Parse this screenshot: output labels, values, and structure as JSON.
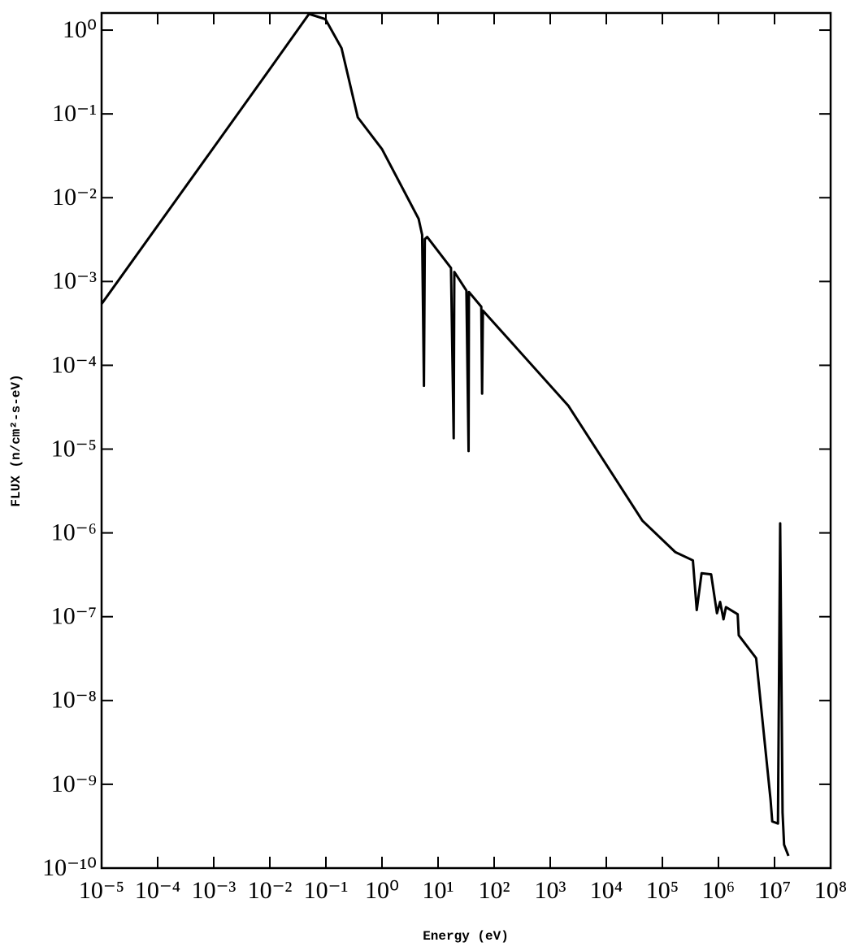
{
  "chart_data": {
    "type": "line",
    "x_label": "Energy (eV)",
    "y_label": "FLUX (n/cm²-s-eV)",
    "x_log": true,
    "y_log": true,
    "color": "#000000",
    "xlim": [
      1e-05,
      100000000
    ],
    "ylim": [
      1e-10,
      1.6
    ],
    "xticks": [
      {
        "value": 1e-05,
        "label": "10⁻⁵"
      },
      {
        "value": 0.0001,
        "label": "10⁻⁴"
      },
      {
        "value": 0.001,
        "label": "10⁻³"
      },
      {
        "value": 0.01,
        "label": "10⁻²"
      },
      {
        "value": 0.1,
        "label": "10⁻¹"
      },
      {
        "value": 1,
        "label": "10⁰"
      },
      {
        "value": 10,
        "label": "10¹"
      },
      {
        "value": 100,
        "label": "10²"
      },
      {
        "value": 1000,
        "label": "10³"
      },
      {
        "value": 10000,
        "label": "10⁴"
      },
      {
        "value": 100000,
        "label": "10⁵"
      },
      {
        "value": 1000000,
        "label": "10⁶"
      },
      {
        "value": 10000000,
        "label": "10⁷"
      },
      {
        "value": 100000000,
        "label": "10⁸"
      }
    ],
    "yticks": [
      {
        "value": 1,
        "label": "10⁰"
      },
      {
        "value": 0.1,
        "label": "10⁻¹"
      },
      {
        "value": 0.01,
        "label": "10⁻²"
      },
      {
        "value": 0.001,
        "label": "10⁻³"
      },
      {
        "value": 0.0001,
        "label": "10⁻⁴"
      },
      {
        "value": 1e-05,
        "label": "10⁻⁵"
      },
      {
        "value": 1e-06,
        "label": "10⁻⁶"
      },
      {
        "value": 1e-07,
        "label": "10⁻⁷"
      },
      {
        "value": 1e-08,
        "label": "10⁻⁸"
      },
      {
        "value": 1e-09,
        "label": "10⁻⁹"
      },
      {
        "value": 1e-10,
        "label": "10⁻¹⁰"
      }
    ],
    "x": [
      1e-05,
      0.0093,
      0.05,
      0.098,
      0.19,
      0.37,
      1,
      4.5,
      5.2,
      5.6,
      5.8,
      6.4,
      17,
      19,
      19.5,
      32,
      35,
      35.5,
      59,
      61,
      63,
      2100,
      44000,
      170000,
      350000,
      410000,
      500000,
      740000,
      940000,
      1070000,
      1230000,
      1360000,
      2200000,
      2300000,
      4700000,
      8500000,
      9100000,
      11500000,
      12600000,
      13900000,
      14800000,
      17700000
    ],
    "values": [
      0.00054,
      0.32,
      1.56,
      1.35,
      0.61,
      0.091,
      0.038,
      0.0056,
      0.0036,
      5.7e-05,
      0.0032,
      0.0034,
      0.00145,
      1.35e-05,
      0.0013,
      0.00078,
      9.5e-06,
      0.00075,
      0.0005,
      4.6e-05,
      0.00045,
      3.3e-05,
      1.4e-06,
      5.9e-07,
      4.7e-07,
      1.2e-07,
      3.3e-07,
      3.2e-07,
      1.1e-07,
      1.5e-07,
      9.3e-08,
      1.3e-07,
      1.07e-07,
      6e-08,
      3.2e-08,
      6.5e-10,
      3.6e-10,
      3.4e-10,
      1.3e-06,
      4.6e-10,
      1.9e-10,
      1.4e-10
    ]
  }
}
